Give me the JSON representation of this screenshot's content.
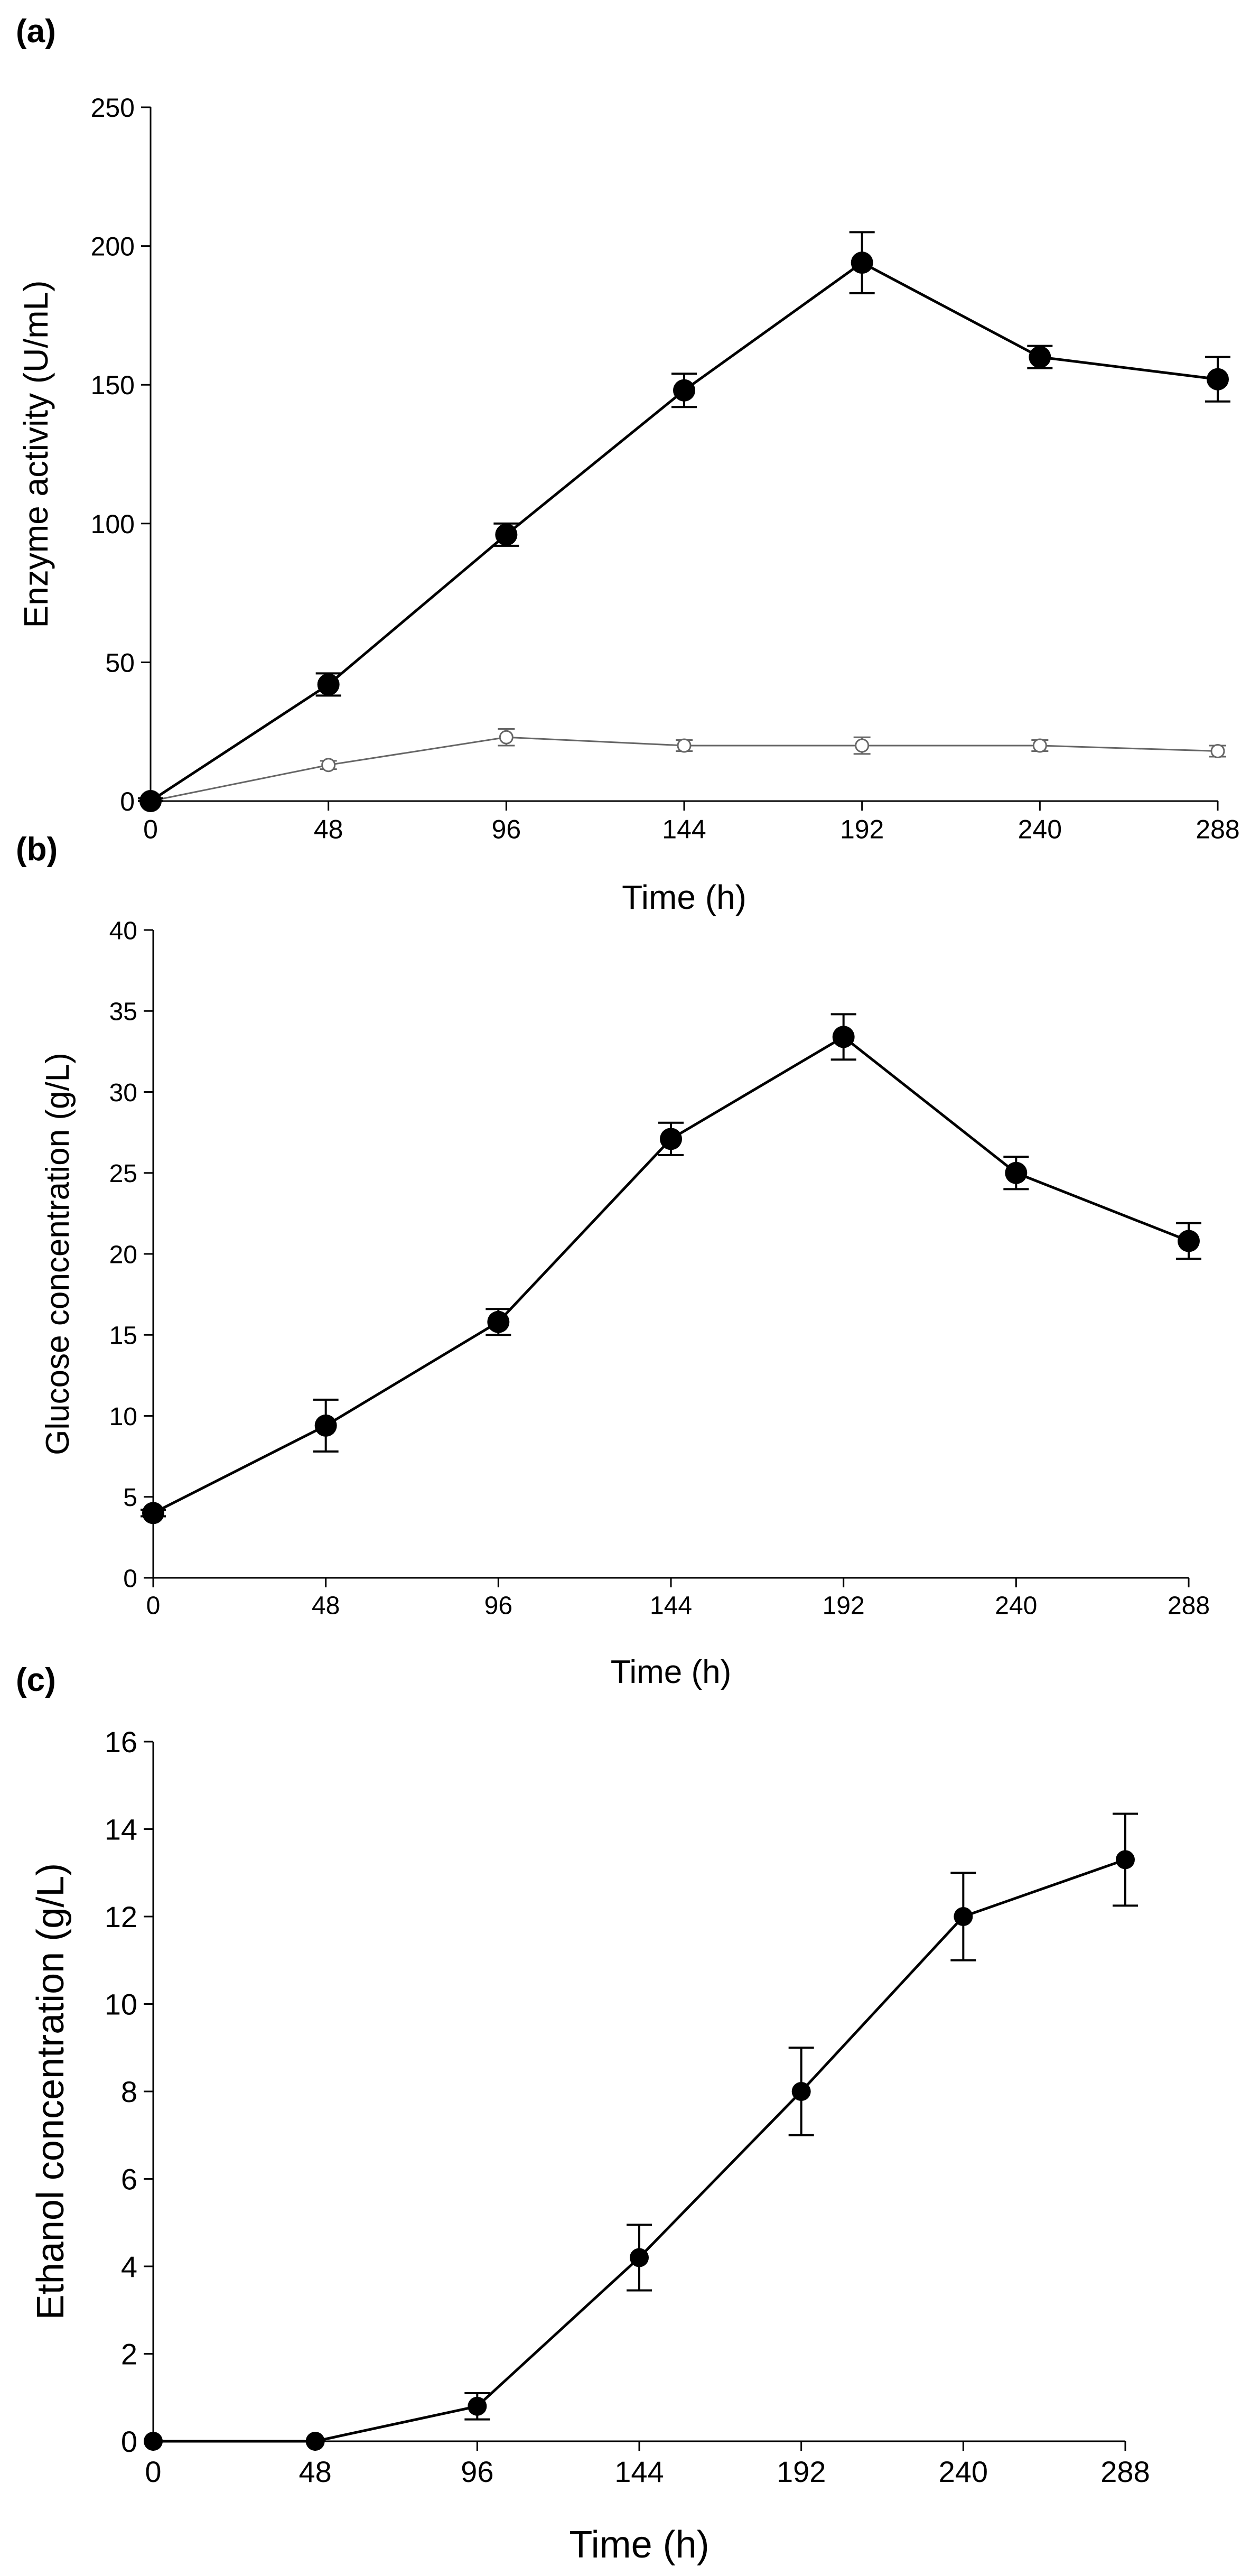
{
  "colors": {
    "axis": "#000000",
    "series_filled": "#000000",
    "series_open_marker": "#ffffff",
    "series_open_line": "#666666"
  },
  "chart_data": [
    {
      "panel": "(a)",
      "type": "line",
      "xlabel": "Time (h)",
      "ylabel": "Enzyme activity (U/mL)",
      "xlim": [
        0,
        288
      ],
      "ylim": [
        0,
        250
      ],
      "xticks": [
        "0",
        "48",
        "96",
        "144",
        "192",
        "240",
        "288"
      ],
      "yticks": [
        "0",
        "50",
        "100",
        "150",
        "200",
        "250"
      ],
      "grid": false,
      "series": [
        {
          "marker": "filled-circle",
          "x": [
            0,
            48,
            96,
            144,
            192,
            240,
            288
          ],
          "y": [
            0,
            42,
            96,
            148,
            194,
            160,
            152
          ],
          "error": [
            1,
            4,
            4,
            6,
            11,
            4,
            8
          ]
        },
        {
          "marker": "open-circle",
          "x": [
            0,
            48,
            96,
            144,
            192,
            240,
            288
          ],
          "y": [
            0,
            13,
            23,
            20,
            20,
            20,
            18
          ],
          "error": [
            1,
            1.5,
            3,
            2,
            3,
            2,
            2
          ]
        }
      ]
    },
    {
      "panel": "(b)",
      "type": "line",
      "xlabel": "Time (h)",
      "ylabel": "Glucose concentration (g/L)",
      "xlim": [
        0,
        288
      ],
      "ylim": [
        0,
        40
      ],
      "xticks": [
        "0",
        "48",
        "96",
        "144",
        "192",
        "240",
        "288"
      ],
      "yticks": [
        "0",
        "5",
        "10",
        "15",
        "20",
        "25",
        "30",
        "35",
        "40"
      ],
      "grid": false,
      "series": [
        {
          "marker": "filled-circle",
          "x": [
            0,
            48,
            96,
            144,
            192,
            240,
            288
          ],
          "y": [
            4,
            9.4,
            15.8,
            27.1,
            33.4,
            25.0,
            20.8
          ],
          "error": [
            0.2,
            1.6,
            0.8,
            1.0,
            1.4,
            1.0,
            1.1
          ]
        }
      ]
    },
    {
      "panel": "(c)",
      "type": "line",
      "xlabel": "Time (h)",
      "ylabel": "Ethanol concentration (g/L)",
      "xlim": [
        0,
        288
      ],
      "ylim": [
        0,
        16
      ],
      "xticks": [
        "0",
        "48",
        "96",
        "144",
        "192",
        "240",
        "288"
      ],
      "yticks": [
        "0",
        "2",
        "4",
        "6",
        "8",
        "10",
        "12",
        "14",
        "16"
      ],
      "grid": false,
      "series": [
        {
          "marker": "filled-circle",
          "x": [
            0,
            48,
            96,
            144,
            192,
            240,
            288
          ],
          "y": [
            0,
            0,
            0.8,
            4.2,
            8.0,
            12.0,
            13.3
          ],
          "error": [
            0,
            0,
            0.3,
            0.75,
            1.0,
            1.0,
            1.05
          ]
        }
      ]
    }
  ]
}
